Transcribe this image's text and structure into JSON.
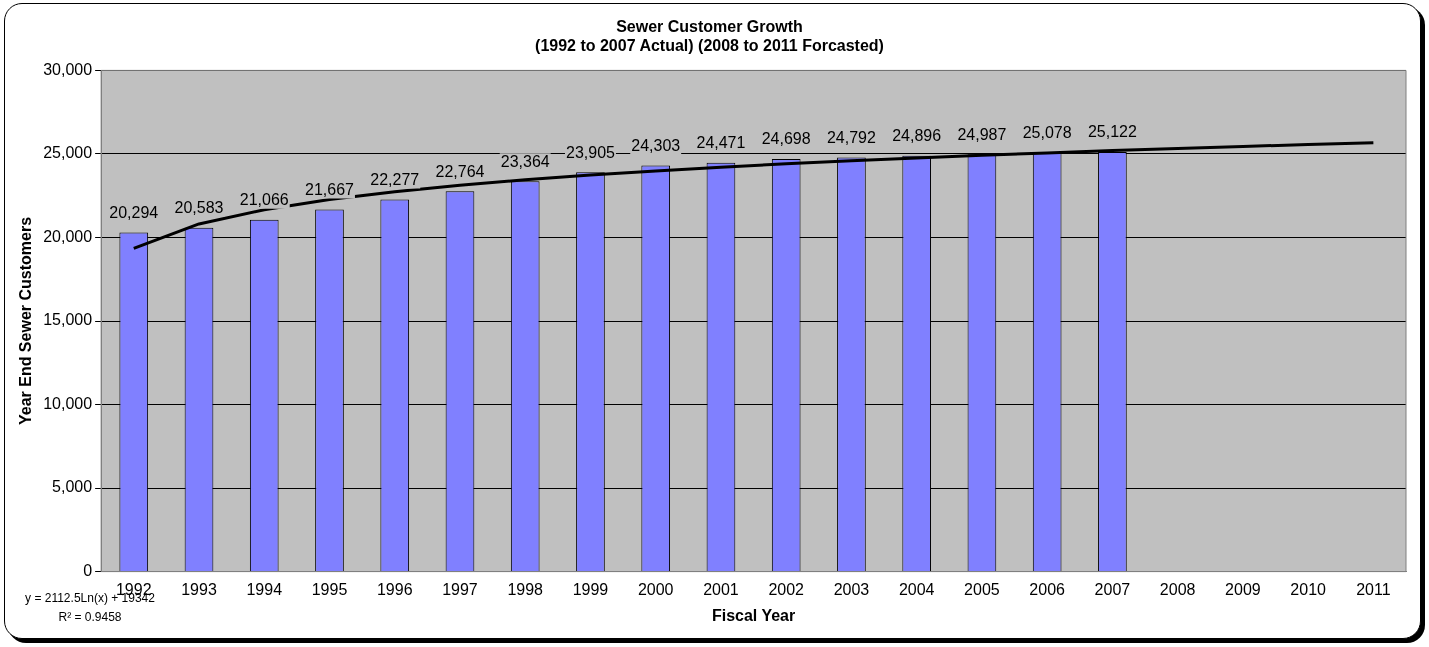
{
  "chart_data": {
    "type": "bar",
    "title": "Sewer Customer Growth\n(1992 to 2007 Actual) (2008 to 2011 Forcasted)",
    "xlabel": "Fiscal Year",
    "ylabel": "Year End Sewer Customers",
    "categories": [
      "1992",
      "1993",
      "1994",
      "1995",
      "1996",
      "1997",
      "1998",
      "1999",
      "2000",
      "2001",
      "2002",
      "2003",
      "2004",
      "2005",
      "2006",
      "2007",
      "2008",
      "2009",
      "2010",
      "2011"
    ],
    "series": [
      {
        "color": "#8080ff",
        "values": [
          20294,
          20583,
          21066,
          21667,
          22277,
          22764,
          23364,
          23905,
          24303,
          24471,
          24698,
          24792,
          24896,
          24987,
          25078,
          25122,
          null,
          null,
          null,
          null
        ],
        "value_labels": [
          "20,294",
          "20,583",
          "21,066",
          "21,667",
          "22,277",
          "22,764",
          "23,364",
          "23,905",
          "24,303",
          "24,471",
          "24,698",
          "24,792",
          "24,896",
          "24,987",
          "25,078",
          "25,122",
          null,
          null,
          null,
          null
        ]
      },
      {
        "type": "line",
        "color": "#000000",
        "values": [
          19342,
          20810,
          21660,
          22270,
          22740,
          23130,
          23450,
          23740,
          23980,
          24210,
          24410,
          24590,
          24760,
          24920,
          25060,
          25200,
          25330,
          25450,
          25560,
          25670
        ]
      }
    ],
    "ylim": [
      0,
      30000
    ],
    "yticks": [
      0,
      {
        "value": 5000,
        "label": "5,000"
      },
      {
        "value": 10000,
        "label": "10,000"
      },
      {
        "value": 15000,
        "label": "15,000"
      },
      {
        "value": 20000,
        "label": "20,000"
      },
      {
        "value": 25000,
        "label": "25,000"
      },
      {
        "value": 30000,
        "label": "30,000"
      }
    ],
    "grid": "y",
    "legend": false,
    "marker": "none",
    "line_style": "solid",
    "annotations": [
      "y = 2112.5Ln(x) + 19342",
      "R² = 0.9458"
    ]
  }
}
